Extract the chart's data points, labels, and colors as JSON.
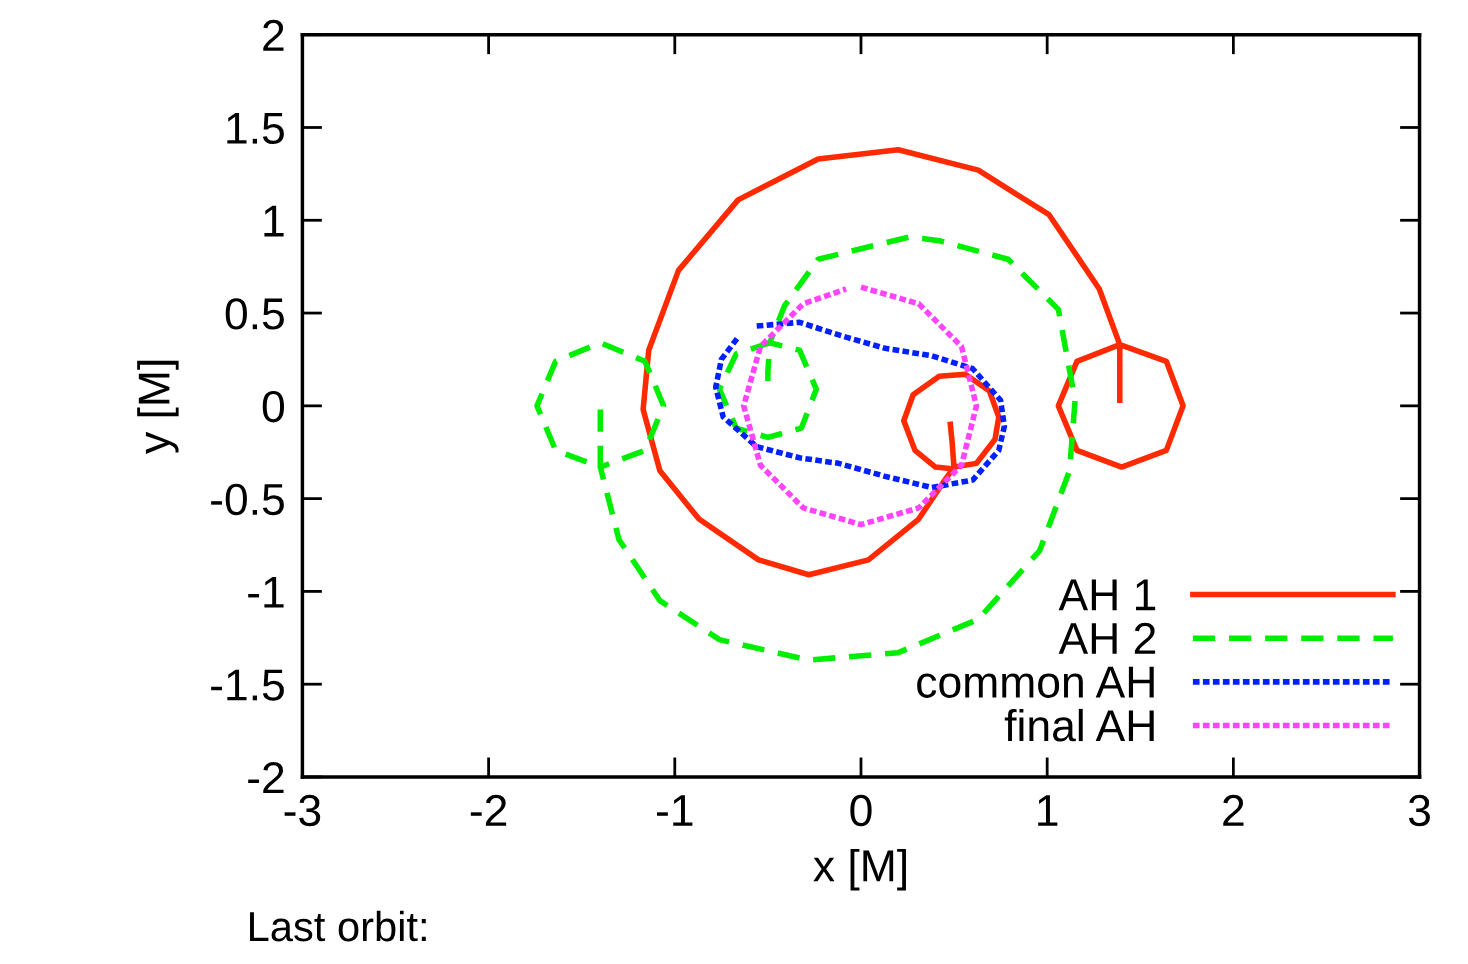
{
  "chart_data": {
    "type": "line",
    "xlabel": "x [M]",
    "ylabel": "y [M]",
    "xlim": [
      -3,
      3
    ],
    "ylim": [
      -2,
      2
    ],
    "xticks": [
      -3,
      -2,
      -1,
      0,
      1,
      2,
      3
    ],
    "yticks": [
      -2,
      -1.5,
      -1,
      -0.5,
      0,
      0.5,
      1,
      1.5,
      2
    ],
    "grid": false,
    "legend": "bottom right",
    "annotations": [
      "Last orbit:"
    ],
    "series": [
      {
        "name": "AH 1",
        "color": "#ff2a00",
        "line_style": "solid",
        "x": [
          1.39,
          1.39,
          1.64,
          1.73,
          1.64,
          1.4,
          1.16,
          1.06,
          1.16,
          1.39,
          1.28,
          1.01,
          0.63,
          0.2,
          -0.23,
          -0.66,
          -0.98,
          -1.14,
          -1.17,
          -1.08,
          -0.87,
          -0.55,
          -0.28,
          0.04,
          0.31,
          0.45,
          0.5,
          0.62,
          0.72,
          0.74,
          0.69,
          0.56,
          0.42,
          0.28,
          0.23,
          0.29,
          0.4,
          0.5,
          0.49,
          0.48
        ],
        "values": [
          0.03,
          0.33,
          0.24,
          0,
          -0.24,
          -0.33,
          -0.24,
          0,
          0.24,
          0.33,
          0.63,
          1.03,
          1.27,
          1.38,
          1.33,
          1.11,
          0.73,
          0.3,
          -0.02,
          -0.35,
          -0.61,
          -0.83,
          -0.91,
          -0.83,
          -0.61,
          -0.4,
          -0.33,
          -0.31,
          -0.18,
          -0.06,
          0.08,
          0.17,
          0.16,
          0.06,
          -0.08,
          -0.24,
          -0.33,
          -0.34,
          -0.2,
          -0.1
        ]
      },
      {
        "name": "AH 2",
        "color": "#00ee00",
        "line_style": "dashed",
        "x": [
          -1.4,
          -1.4,
          -1.64,
          -1.74,
          -1.64,
          -1.4,
          -1.16,
          -1.06,
          -1.16,
          -1.4,
          -1.3,
          -1.08,
          -0.76,
          -0.28,
          0.2,
          0.63,
          0.96,
          1.12,
          1.15,
          1.06,
          0.79,
          0.42,
          0.26,
          -0.23,
          -0.41,
          -0.49,
          -0.33,
          -0.24,
          -0.32,
          -0.5,
          -0.67,
          -0.76,
          -0.67,
          -0.49,
          -0.5,
          -0.5
        ],
        "values": [
          -0.02,
          -0.33,
          -0.24,
          0,
          0.24,
          0.34,
          0.24,
          0,
          -0.24,
          -0.33,
          -0.72,
          -1.05,
          -1.26,
          -1.37,
          -1.33,
          -1.15,
          -0.78,
          -0.35,
          0.03,
          0.52,
          0.79,
          0.89,
          0.91,
          0.79,
          0.54,
          0.34,
          0.3,
          0.09,
          -0.12,
          -0.17,
          -0.12,
          0.09,
          0.28,
          0.34,
          0.18,
          0.12
        ]
      },
      {
        "name": "common AH",
        "color": "#0020ff",
        "line_style": "dotted",
        "x": [
          -0.56,
          -0.33,
          -0.08,
          0.13,
          0.38,
          0.6,
          0.75,
          0.77,
          0.74,
          0.6,
          0.38,
          0.13,
          -0.12,
          -0.33,
          -0.56,
          -0.74,
          -0.78,
          -0.75,
          -0.66
        ],
        "values": [
          0.43,
          0.45,
          0.37,
          0.31,
          0.27,
          0.2,
          0.03,
          -0.11,
          -0.24,
          -0.4,
          -0.44,
          -0.38,
          -0.31,
          -0.28,
          -0.22,
          -0.06,
          0.1,
          0.25,
          0.37
        ]
      },
      {
        "name": "final AH",
        "color": "#ff44ff",
        "line_style": "dotted",
        "x": [
          0.0,
          0.31,
          0.54,
          0.62,
          0.54,
          0.31,
          0.0,
          -0.31,
          -0.54,
          -0.63,
          -0.54,
          -0.31,
          -0.08
        ],
        "values": [
          0.64,
          0.55,
          0.32,
          0.0,
          -0.32,
          -0.55,
          -0.64,
          -0.55,
          -0.32,
          0.0,
          0.32,
          0.55,
          0.63
        ]
      }
    ]
  }
}
